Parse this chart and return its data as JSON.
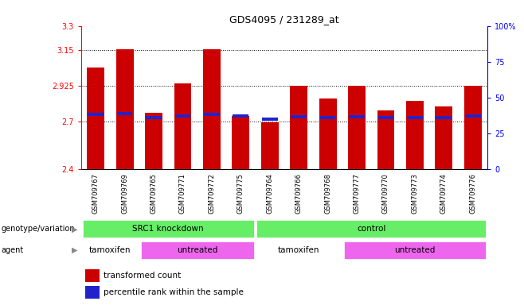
{
  "title": "GDS4095 / 231289_at",
  "samples": [
    "GSM709767",
    "GSM709769",
    "GSM709765",
    "GSM709771",
    "GSM709772",
    "GSM709775",
    "GSM709764",
    "GSM709766",
    "GSM709768",
    "GSM709777",
    "GSM709770",
    "GSM709773",
    "GSM709774",
    "GSM709776"
  ],
  "red_values": [
    3.04,
    3.155,
    2.755,
    2.94,
    3.155,
    2.735,
    2.695,
    2.925,
    2.845,
    2.925,
    2.77,
    2.83,
    2.795,
    2.925
  ],
  "blue_values": [
    2.745,
    2.748,
    2.727,
    2.736,
    2.743,
    2.736,
    2.716,
    2.732,
    2.727,
    2.732,
    2.727,
    2.727,
    2.727,
    2.736
  ],
  "ymin": 2.4,
  "ymax": 3.3,
  "yticks_left": [
    2.4,
    2.7,
    2.925,
    3.15,
    3.3
  ],
  "ytick_labels_left": [
    "2.4",
    "2.7",
    "2.925",
    "3.15",
    "3.3"
  ],
  "yticks_right": [
    0,
    25,
    50,
    75,
    100
  ],
  "ytick_labels_right": [
    "0",
    "25",
    "50",
    "75",
    "100%"
  ],
  "grid_lines": [
    2.7,
    2.925,
    3.15
  ],
  "bar_color": "#cc0000",
  "blue_color": "#2222cc",
  "bar_width": 0.6,
  "genotype_groups": [
    {
      "label": "SRC1 knockdown",
      "start": 0,
      "end": 6
    },
    {
      "label": "control",
      "start": 6,
      "end": 14
    }
  ],
  "agent_groups": [
    {
      "label": "tamoxifen",
      "start": 0,
      "end": 2
    },
    {
      "label": "untreated",
      "start": 2,
      "end": 6
    },
    {
      "label": "tamoxifen",
      "start": 6,
      "end": 9
    },
    {
      "label": "untreated",
      "start": 9,
      "end": 14
    }
  ],
  "genotype_color": "#66ee66",
  "agent_color_tamoxifen": "#ffffff",
  "agent_color_untreated": "#ee66ee",
  "legend_red_label": "transformed count",
  "legend_blue_label": "percentile rank within the sample",
  "genotype_label": "genotype/variation",
  "agent_label": "agent"
}
